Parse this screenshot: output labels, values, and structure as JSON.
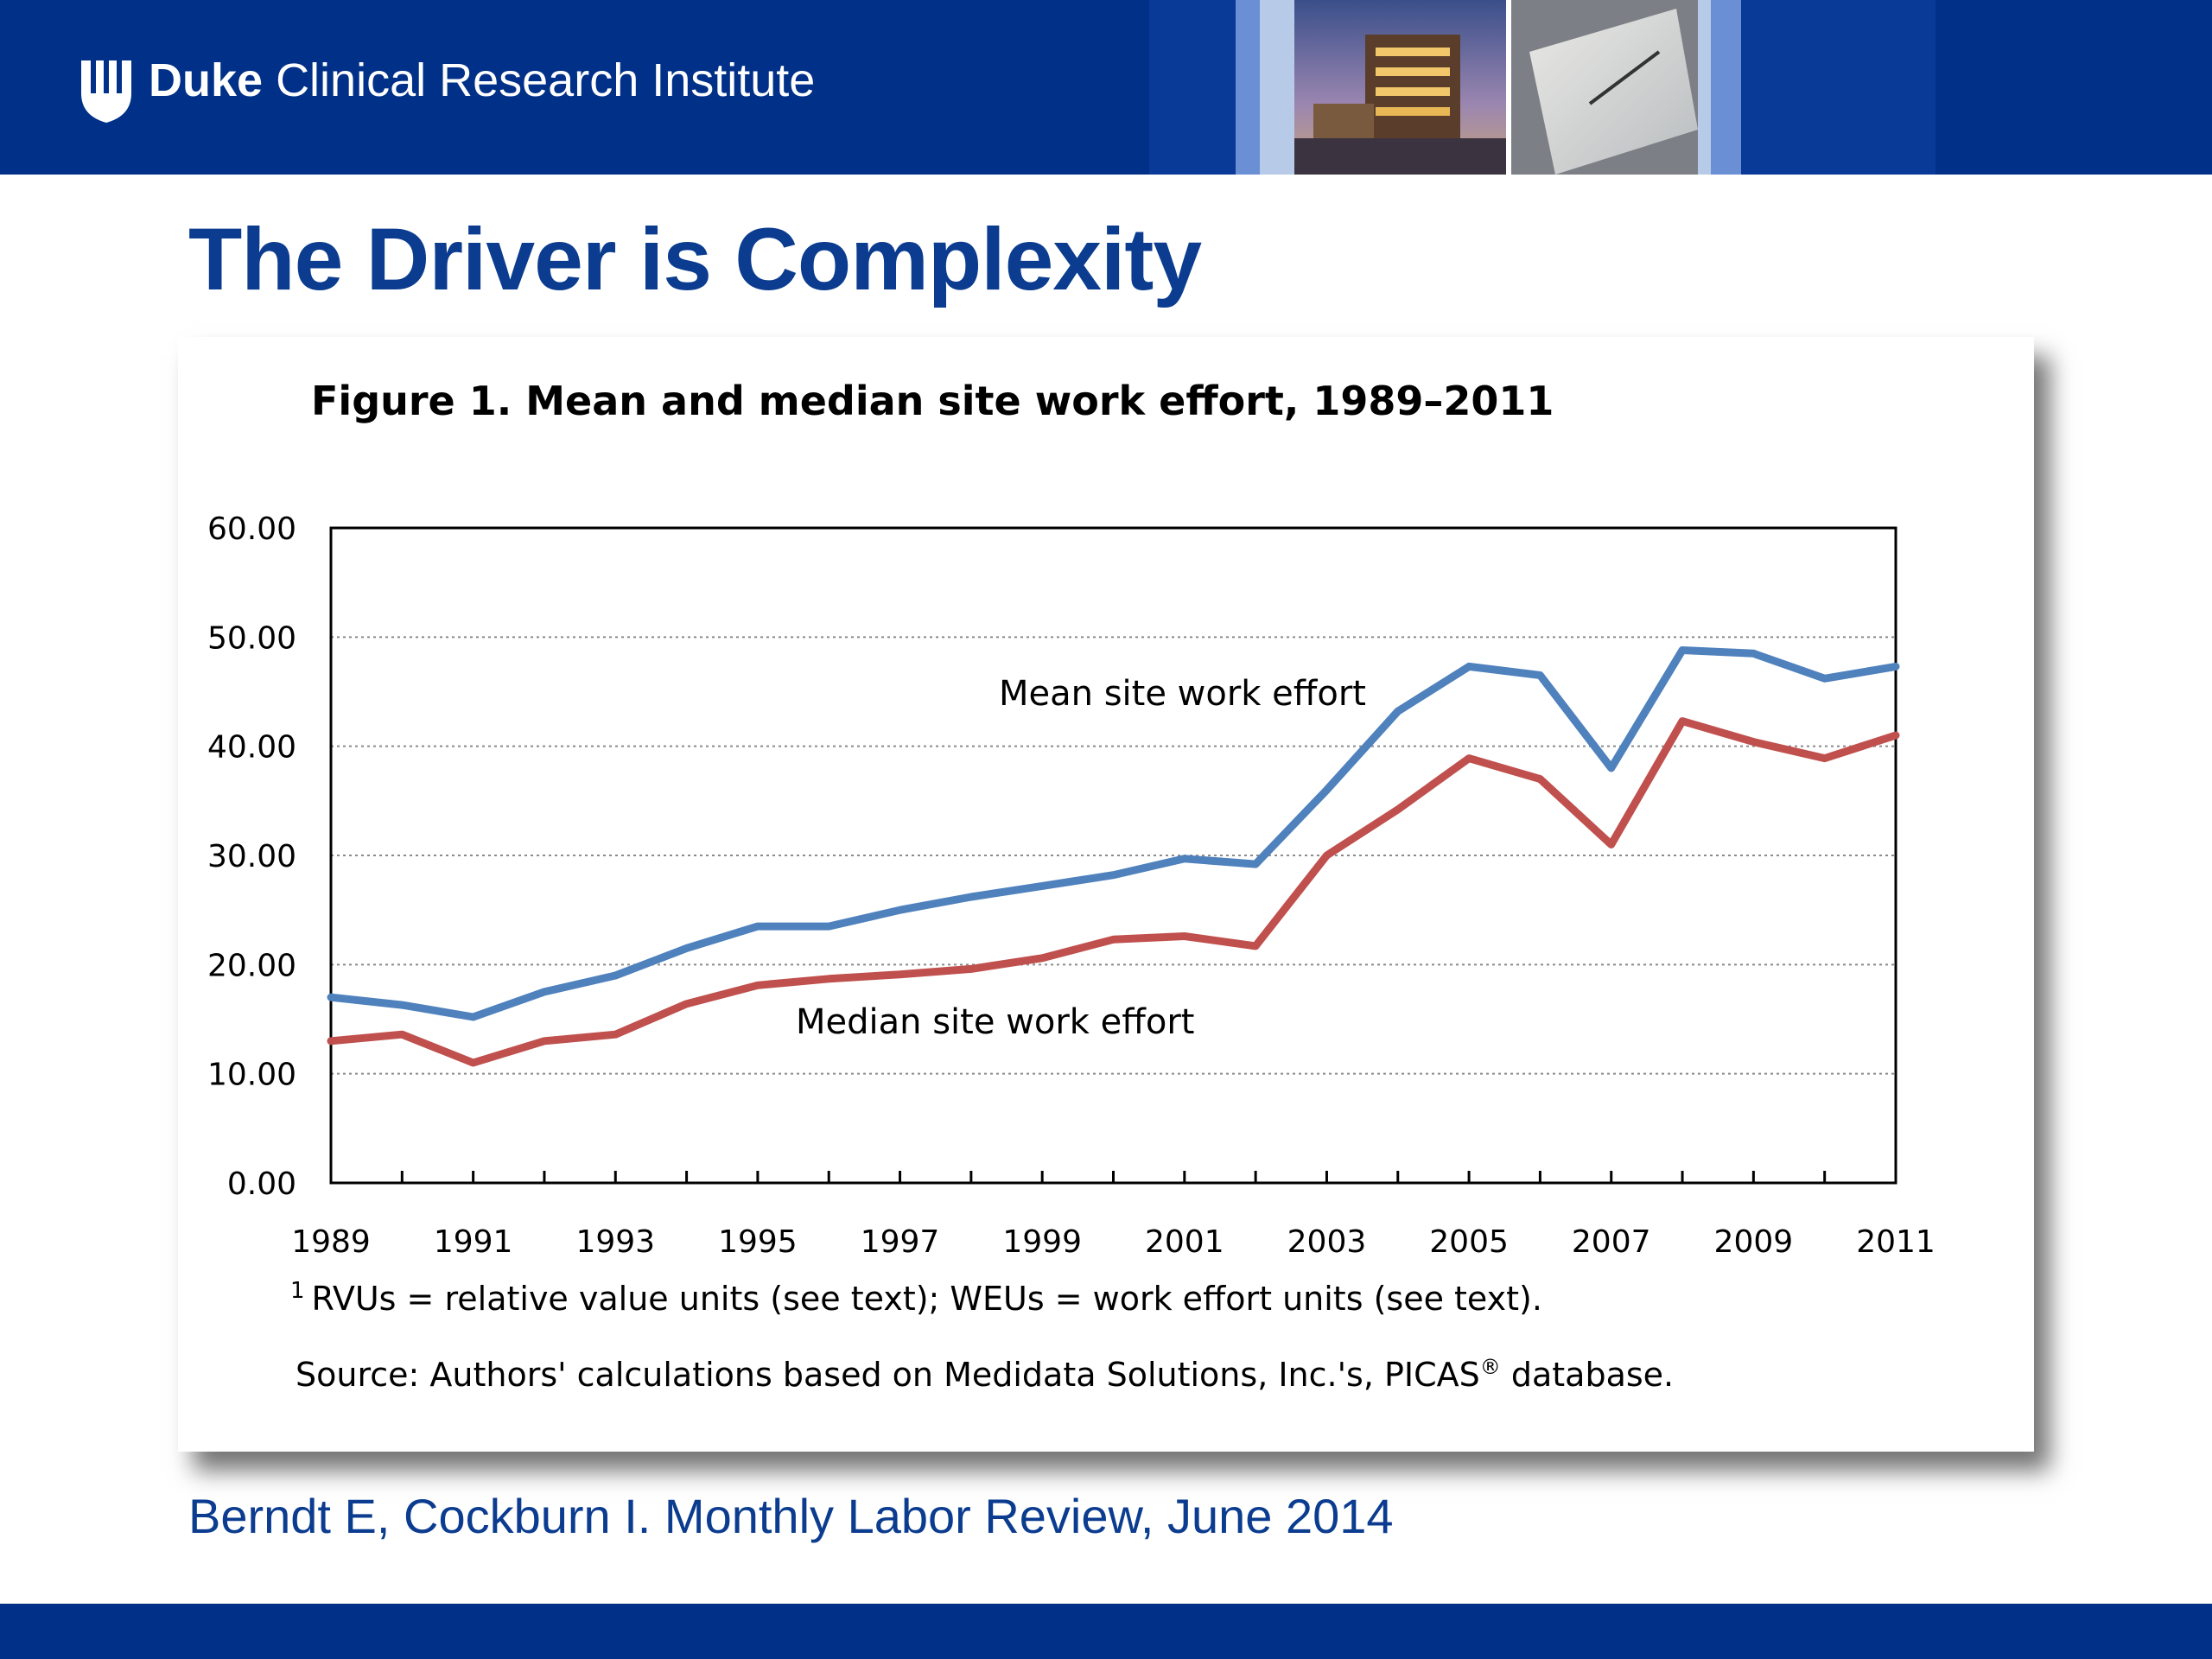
{
  "header": {
    "brand_bold": "Duke",
    "brand_rest": "Clinical Research Institute",
    "colors": {
      "banner": "#003087"
    }
  },
  "slide": {
    "title": "The Driver is Complexity",
    "citation": "Berndt E, Cockburn I.  Monthly Labor Review, June 2014"
  },
  "chart_data": {
    "type": "line",
    "title": "Figure 1. Mean and median site work effort, 1989–2011",
    "x": [
      1989,
      1990,
      1991,
      1992,
      1993,
      1994,
      1995,
      1996,
      1997,
      1998,
      1999,
      2000,
      2001,
      2002,
      2003,
      2004,
      2005,
      2006,
      2007,
      2008,
      2009,
      2010,
      2011
    ],
    "x_tick_labels": [
      "1989",
      "1991",
      "1993",
      "1995",
      "1997",
      "1999",
      "2001",
      "2003",
      "2005",
      "2007",
      "2009",
      "2011"
    ],
    "y_tick_labels": [
      "0.00",
      "10.00",
      "20.00",
      "30.00",
      "40.00",
      "50.00",
      "60.00"
    ],
    "ylim": [
      0,
      60
    ],
    "grid": "horizontal dotted",
    "series": [
      {
        "name": "Mean site work effort",
        "color": "#4f81bd",
        "values": [
          17.0,
          16.3,
          15.2,
          17.5,
          19.0,
          21.5,
          23.5,
          23.5,
          25.0,
          26.2,
          27.2,
          28.2,
          29.7,
          29.2,
          36.0,
          43.2,
          47.3,
          46.5,
          38.0,
          48.8,
          48.5,
          46.2,
          47.3
        ]
      },
      {
        "name": "Median site work effort",
        "color": "#c0504d",
        "values": [
          13.0,
          13.6,
          11.0,
          13.0,
          13.6,
          16.4,
          18.1,
          18.7,
          19.1,
          19.6,
          20.6,
          22.3,
          22.6,
          21.7,
          30.0,
          34.2,
          38.9,
          37.0,
          31.0,
          42.3,
          40.4,
          38.9,
          41.0
        ]
      }
    ],
    "footnote": "RVUs = relative value units (see text); WEUs = work effort units (see text).",
    "footnote_marker": "1",
    "source": "Source: Authors' calculations based on Medidata Solutions, Inc.'s, PICAS",
    "source_mark": "®",
    "source_end": " database."
  }
}
